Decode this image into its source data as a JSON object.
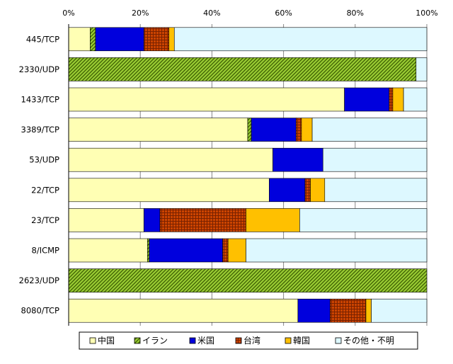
{
  "chart_data": {
    "type": "bar",
    "orientation": "horizontal",
    "stacked": true,
    "percent": true,
    "xlim": [
      0,
      100
    ],
    "x_ticks": [
      "0%",
      "20%",
      "40%",
      "60%",
      "80%",
      "100%"
    ],
    "grid": true,
    "legend_position": "bottom",
    "categories": [
      "445/TCP",
      "2330/UDP",
      "1433/TCP",
      "3389/TCP",
      "53/UDP",
      "22/TCP",
      "23/TCP",
      "8/ICMP",
      "2623/UDP",
      "8080/TCP"
    ],
    "series": [
      {
        "name": "中国",
        "color": "#ffffb4",
        "pattern": "solid",
        "values": [
          6,
          0,
          77,
          50,
          57,
          56,
          21,
          22,
          0,
          64
        ]
      },
      {
        "name": "イラン",
        "color": "#99cc33",
        "pattern": "diagonal-hatch",
        "values": [
          1.5,
          97,
          0,
          1,
          0,
          0,
          0,
          0.5,
          100,
          0
        ]
      },
      {
        "name": "米国",
        "color": "#0000dd",
        "pattern": "solid",
        "values": [
          13.5,
          0,
          12.5,
          12.5,
          14,
          10,
          4.5,
          20.5,
          0,
          9
        ]
      },
      {
        "name": "台湾",
        "color": "#cc4400",
        "pattern": "grid",
        "values": [
          7,
          0,
          1,
          1.5,
          0,
          1.5,
          24,
          1.5,
          0,
          10
        ]
      },
      {
        "name": "韓国",
        "color": "#ffc000",
        "pattern": "solid",
        "values": [
          1.5,
          0,
          3,
          3,
          0,
          4,
          15,
          5,
          0,
          1.5
        ]
      },
      {
        "name": "その他・不明",
        "color": "#ddf8ff",
        "pattern": "solid",
        "values": [
          70.5,
          3,
          6.5,
          32,
          29,
          28.5,
          35.5,
          50.5,
          0,
          15.5
        ]
      }
    ]
  }
}
